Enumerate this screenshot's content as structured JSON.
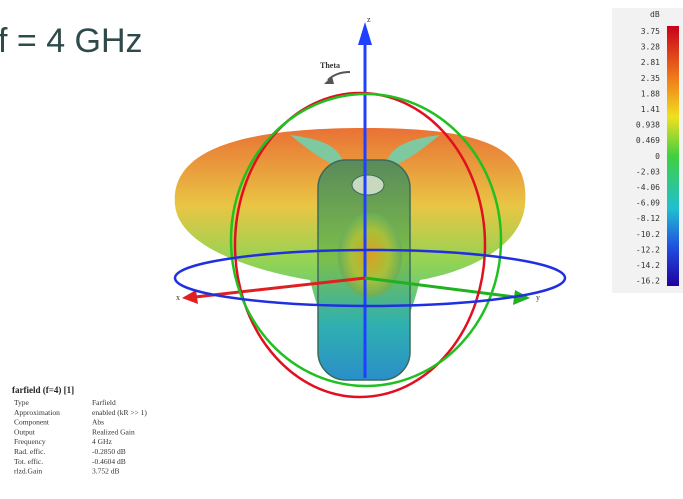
{
  "title": "f = 4 GHz",
  "axes": {
    "z": "z",
    "theta": "Theta",
    "x": "x",
    "y": "y"
  },
  "colorbar": {
    "unit": "dB",
    "labels": [
      "3.75",
      "3.28",
      "2.81",
      "2.35",
      "1.88",
      "1.41",
      "0.938",
      "0.469",
      "0",
      "-2.03",
      "-4.06",
      "-6.09",
      "-8.12",
      "-10.2",
      "-12.2",
      "-14.2",
      "-16.2"
    ]
  },
  "info": {
    "heading": "farfield (f=4) [1]",
    "rows": [
      [
        "Type",
        "Farfield"
      ],
      [
        "Approximation",
        "enabled (kR >> 1)"
      ],
      [
        "Component",
        "Abs"
      ],
      [
        "Output",
        "Realized Gain"
      ],
      [
        "Frequency",
        "4 GHz"
      ],
      [
        "Rad. effic.",
        "-0.2850 dB"
      ],
      [
        "Tot. effic.",
        "-0.4604 dB"
      ],
      [
        "rlzd.Gain",
        "3.752 dB"
      ]
    ]
  }
}
